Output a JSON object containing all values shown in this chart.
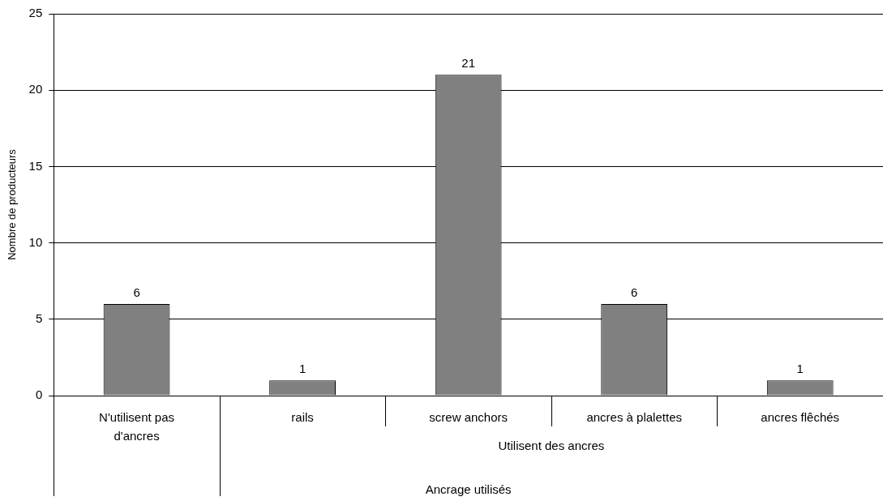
{
  "chart_data": {
    "type": "bar",
    "categories": [
      "N'utilisent pas d'ancres",
      "rails",
      "screw anchors",
      "ancres à plalettes",
      "ancres flêchés"
    ],
    "values": [
      6,
      1,
      21,
      6,
      1
    ],
    "color": "#808080",
    "xlabel": "Ancrage utilisés",
    "ylabel": "Nombre de producteurs",
    "annotations": [
      "Utilisent des ancres"
    ],
    "ylim": [
      0,
      25
    ],
    "yticks": [
      0,
      5,
      10,
      15,
      20,
      25
    ],
    "grid": "y",
    "data_labels": true,
    "legend": false
  }
}
